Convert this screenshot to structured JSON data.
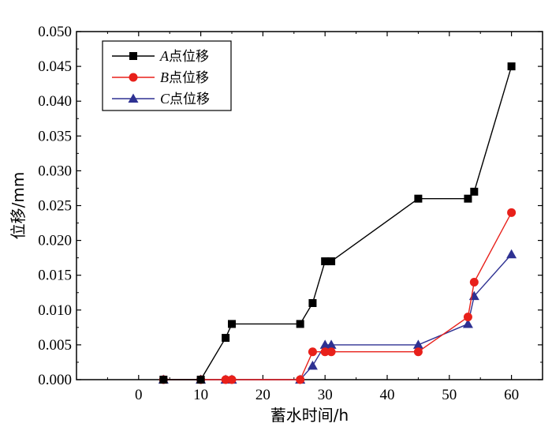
{
  "chart_data": {
    "type": "line",
    "xlabel": "蓄水时间/h",
    "ylabel": "位移/mm",
    "xlim": [
      -10,
      65
    ],
    "ylim": [
      0,
      0.05
    ],
    "xticks": [
      "0",
      "10",
      "20",
      "30",
      "40",
      "50",
      "60"
    ],
    "xtick_values": [
      0,
      10,
      20,
      30,
      40,
      50,
      60
    ],
    "yticks": [
      "0.000",
      "0.005",
      "0.010",
      "0.015",
      "0.020",
      "0.025",
      "0.030",
      "0.035",
      "0.040",
      "0.045",
      "0.050"
    ],
    "ytick_values": [
      0,
      0.005,
      0.01,
      0.015,
      0.02,
      0.025,
      0.03,
      0.035,
      0.04,
      0.045,
      0.05
    ],
    "grid": false,
    "legend_position": "top-left",
    "series": [
      {
        "name": "A点位移",
        "name_letter": "A",
        "name_rest": "点位移",
        "color": "#000000",
        "marker": "square",
        "x": [
          4,
          10,
          14,
          15,
          26,
          28,
          30,
          31,
          45,
          53,
          54,
          60
        ],
        "y": [
          0,
          0,
          0.006,
          0.008,
          0.008,
          0.011,
          0.017,
          0.017,
          0.026,
          0.026,
          0.027,
          0.045
        ]
      },
      {
        "name": "B点位移",
        "name_letter": "B",
        "name_rest": "点位移",
        "color": "#e8201a",
        "marker": "circle",
        "x": [
          4,
          10,
          14,
          15,
          26,
          28,
          30,
          31,
          45,
          53,
          54,
          60
        ],
        "y": [
          0,
          0,
          0,
          0,
          0,
          0.004,
          0.004,
          0.004,
          0.004,
          0.009,
          0.014,
          0.024
        ]
      },
      {
        "name": "C点位移",
        "name_letter": "C",
        "name_rest": "点位移",
        "color": "#2e3192",
        "marker": "triangle",
        "x": [
          4,
          10,
          14,
          15,
          26,
          28,
          30,
          31,
          45,
          53,
          54,
          60
        ],
        "y": [
          0,
          0,
          0,
          0,
          0,
          0.002,
          0.005,
          0.005,
          0.005,
          0.008,
          0.012,
          0.018
        ]
      }
    ]
  }
}
